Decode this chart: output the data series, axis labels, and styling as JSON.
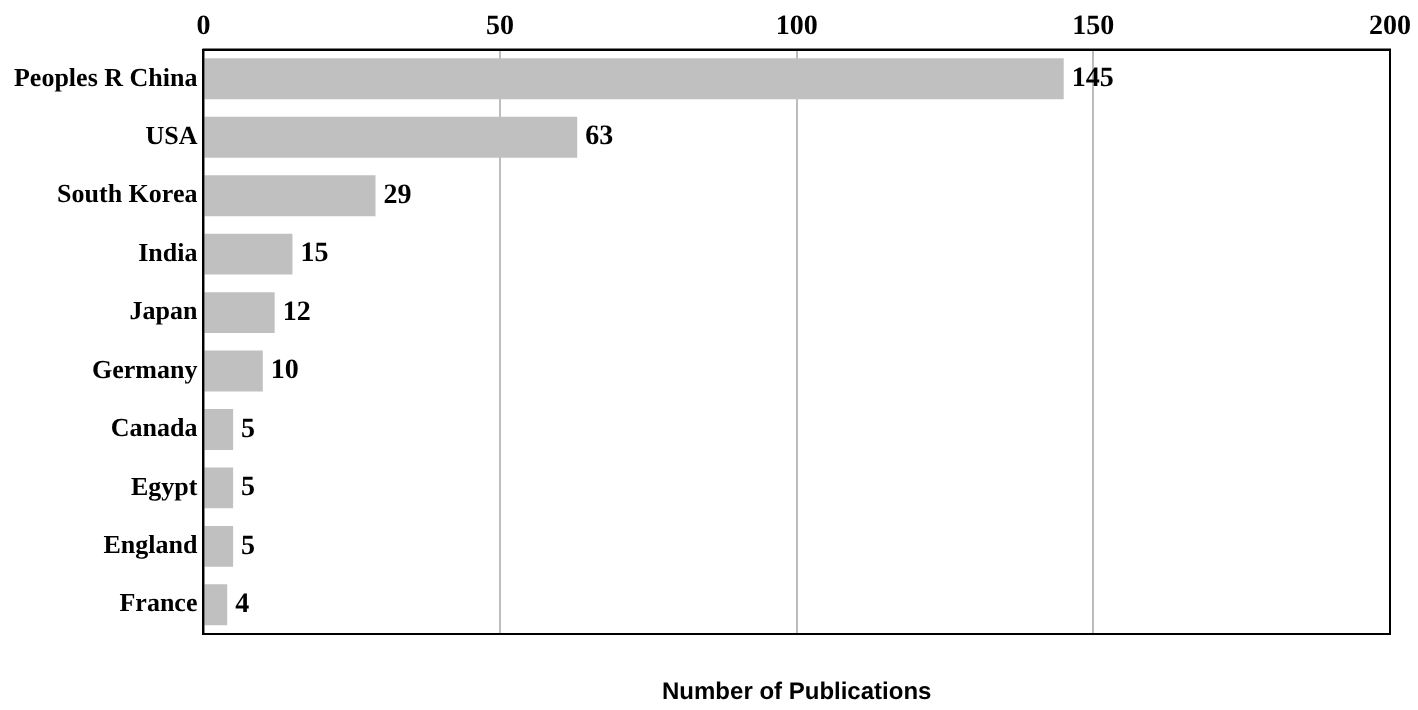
{
  "chart_data": {
    "type": "bar",
    "orientation": "horizontal",
    "xlabel": "Number of Publications",
    "categories": [
      "Peoples R China",
      "USA",
      "South Korea",
      "India",
      "Japan",
      "Germany",
      "Canada",
      "Egypt",
      "England",
      "France"
    ],
    "values": [
      145,
      63,
      29,
      15,
      12,
      10,
      5,
      5,
      5,
      4
    ],
    "color": "#c0c0c0",
    "xlim": [
      0,
      200
    ],
    "xticks": [
      0,
      50,
      100,
      150,
      200
    ],
    "grid": "x",
    "data_labels": true
  }
}
